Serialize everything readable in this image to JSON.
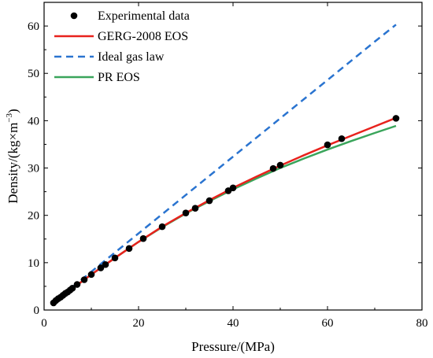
{
  "chart_data": {
    "type": "line",
    "title": "",
    "xlabel": "Pressure/(MPa)",
    "ylabel": "Density/(kg×m",
    "ylabel_exponent": "−3",
    "ylabel_close": ")",
    "xlim": [
      0,
      80
    ],
    "ylim": [
      0,
      65
    ],
    "xticks": [
      0,
      20,
      40,
      60,
      80
    ],
    "yticks": [
      0,
      10,
      20,
      30,
      40,
      50,
      60
    ],
    "grid": false,
    "legend_position": "top-left",
    "series": [
      {
        "name": "Experimental data",
        "kind": "scatter",
        "color": "#000000",
        "points": [
          [
            2.0,
            1.5
          ],
          [
            2.5,
            2.0
          ],
          [
            3.0,
            2.4
          ],
          [
            3.5,
            2.7
          ],
          [
            4.0,
            3.1
          ],
          [
            4.5,
            3.5
          ],
          [
            5.0,
            3.8
          ],
          [
            5.5,
            4.2
          ],
          [
            6.0,
            4.6
          ],
          [
            7.0,
            5.4
          ],
          [
            8.5,
            6.4
          ],
          [
            10.0,
            7.5
          ],
          [
            12.0,
            8.9
          ],
          [
            13.0,
            9.6
          ],
          [
            15.0,
            11.0
          ],
          [
            18.0,
            13.0
          ],
          [
            21.0,
            15.1
          ],
          [
            25.0,
            17.6
          ],
          [
            30.0,
            20.5
          ],
          [
            32.0,
            21.5
          ],
          [
            35.0,
            23.1
          ],
          [
            39.0,
            25.2
          ],
          [
            40.0,
            25.8
          ],
          [
            48.5,
            29.9
          ],
          [
            50.0,
            30.6
          ],
          [
            60.0,
            34.9
          ],
          [
            63.0,
            36.2
          ],
          [
            74.5,
            40.5
          ]
        ]
      },
      {
        "name": "GERG-2008 EOS",
        "kind": "line",
        "color": "#e8221d",
        "dash": "solid",
        "points": [
          [
            2,
            1.5
          ],
          [
            5,
            3.8
          ],
          [
            10,
            7.5
          ],
          [
            15,
            11.0
          ],
          [
            20,
            14.4
          ],
          [
            25,
            17.6
          ],
          [
            30,
            20.5
          ],
          [
            35,
            23.2
          ],
          [
            40,
            25.8
          ],
          [
            45,
            28.2
          ],
          [
            50,
            30.5
          ],
          [
            55,
            32.7
          ],
          [
            60,
            34.8
          ],
          [
            65,
            36.8
          ],
          [
            70,
            38.8
          ],
          [
            74.5,
            40.6
          ]
        ]
      },
      {
        "name": "Ideal gas law",
        "kind": "line",
        "color": "#2a74d0",
        "dash": "dashed",
        "points": [
          [
            2,
            1.6
          ],
          [
            10,
            8.1
          ],
          [
            20,
            16.2
          ],
          [
            30,
            24.3
          ],
          [
            40,
            32.4
          ],
          [
            50,
            40.5
          ],
          [
            60,
            48.6
          ],
          [
            70,
            56.7
          ],
          [
            74.5,
            60.3
          ]
        ]
      },
      {
        "name": "PR EOS",
        "kind": "line",
        "color": "#3aa55b",
        "dash": "solid",
        "points": [
          [
            2,
            1.5
          ],
          [
            5,
            3.8
          ],
          [
            10,
            7.5
          ],
          [
            15,
            11.0
          ],
          [
            20,
            14.4
          ],
          [
            25,
            17.5
          ],
          [
            30,
            20.4
          ],
          [
            35,
            23.0
          ],
          [
            40,
            25.5
          ],
          [
            45,
            27.8
          ],
          [
            50,
            30.0
          ],
          [
            55,
            32.0
          ],
          [
            60,
            33.9
          ],
          [
            65,
            35.7
          ],
          [
            70,
            37.4
          ],
          [
            74.5,
            38.9
          ]
        ]
      }
    ]
  }
}
